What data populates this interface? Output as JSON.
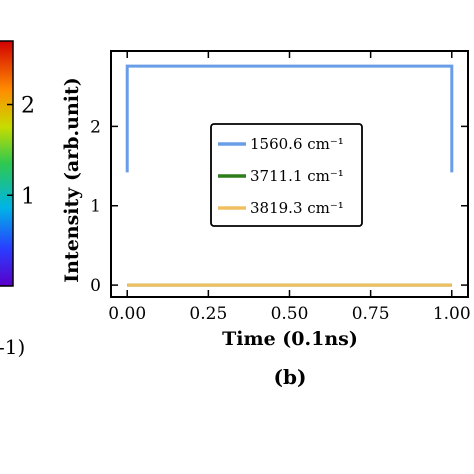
{
  "chart_data": {
    "type": "line",
    "panel_label": "(b)",
    "xlabel": "Time (0.1ns)",
    "ylabel": "Intensity (arb.unit)",
    "xlim": [
      -0.05,
      1.05
    ],
    "ylim": [
      -0.15,
      2.95
    ],
    "xticks": [
      "0.00",
      "0.25",
      "0.50",
      "0.75",
      "1.00"
    ],
    "xtick_values": [
      0,
      0.25,
      0.5,
      0.75,
      1.0
    ],
    "yticks": [
      "0",
      "1",
      "2"
    ],
    "ytick_values": [
      0,
      1,
      2
    ],
    "grid": false,
    "legend_position": "center-right",
    "series": [
      {
        "name": "1560.6 cm⁻¹",
        "color": "#6a9de8",
        "x": [
          0.0,
          0.0,
          1.0,
          1.0
        ],
        "y": [
          1.42,
          2.76,
          2.76,
          1.42
        ]
      },
      {
        "name": "3711.1 cm⁻¹",
        "color": "#2e7d1a",
        "x": [
          0.0,
          1.0
        ],
        "y": [
          0.0,
          0.0
        ]
      },
      {
        "name": "3819.3 cm⁻¹",
        "color": "#f0c060",
        "x": [
          0.0,
          1.0
        ],
        "y": [
          0.0,
          0.0
        ]
      }
    ]
  },
  "colorbar": {
    "tick_labels": [
      "2",
      "1"
    ],
    "tick_values": [
      2,
      1
    ],
    "range": [
      0,
      2.7
    ],
    "label_fragment": "-1)"
  }
}
